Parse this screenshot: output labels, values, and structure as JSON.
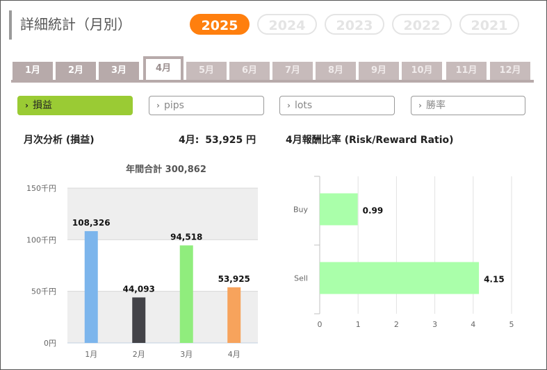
{
  "title": "詳細統計（月別）",
  "years": [
    "2025",
    "2024",
    "2023",
    "2022",
    "2021"
  ],
  "active_year": "2025",
  "months": [
    "1月",
    "2月",
    "3月",
    "4月",
    "5月",
    "6月",
    "7月",
    "8月",
    "9月",
    "10月",
    "11月",
    "12月"
  ],
  "active_month": "4月",
  "metrics": [
    "損益",
    "pips",
    "lots",
    "勝率"
  ],
  "active_metric": "損益",
  "left_panel": {
    "heading": "月次分析 (損益)",
    "current_label": "4月:",
    "current_value": "53,925 円"
  },
  "right_panel": {
    "heading": "4月報酬比率 (Risk/Reward Ratio)"
  },
  "chart_data": [
    {
      "type": "bar",
      "title": "年間合計 300,862",
      "categories": [
        "1月",
        "2月",
        "3月",
        "4月"
      ],
      "values": [
        108326,
        44093,
        94518,
        53925
      ],
      "value_labels": [
        "108,326",
        "44,093",
        "94,518",
        "53,925"
      ],
      "colors": [
        "#7cb5ec",
        "#434348",
        "#90ed7d",
        "#f7a35c"
      ],
      "ylim": [
        0,
        150000
      ],
      "yticks": [
        "0円",
        "50千円",
        "100千円",
        "150千円"
      ],
      "ytick_values": [
        0,
        50000,
        100000,
        150000
      ]
    },
    {
      "type": "bar",
      "orientation": "horizontal",
      "categories": [
        "Buy",
        "Sell"
      ],
      "values": [
        0.99,
        4.15
      ],
      "value_labels": [
        "0.99",
        "4.15"
      ],
      "color": "#aaffaa",
      "xlim": [
        0,
        5
      ],
      "xticks": [
        "0",
        "1",
        "2",
        "3",
        "4",
        "5"
      ]
    }
  ]
}
